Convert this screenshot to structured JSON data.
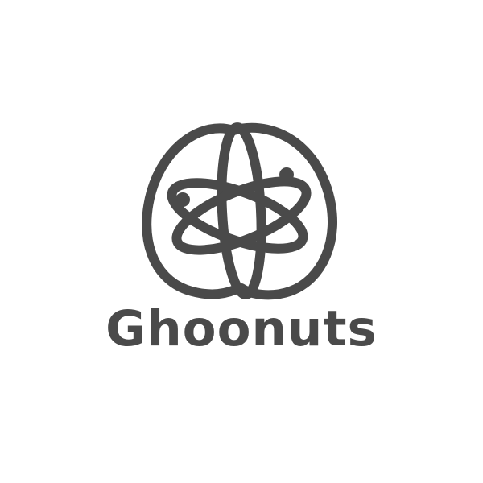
{
  "brand": {
    "name": "Ghoonuts",
    "colors": {
      "mark": "#4a4a4a",
      "background": "#ffffff"
    },
    "icon": "atom-nut-logo-icon"
  }
}
